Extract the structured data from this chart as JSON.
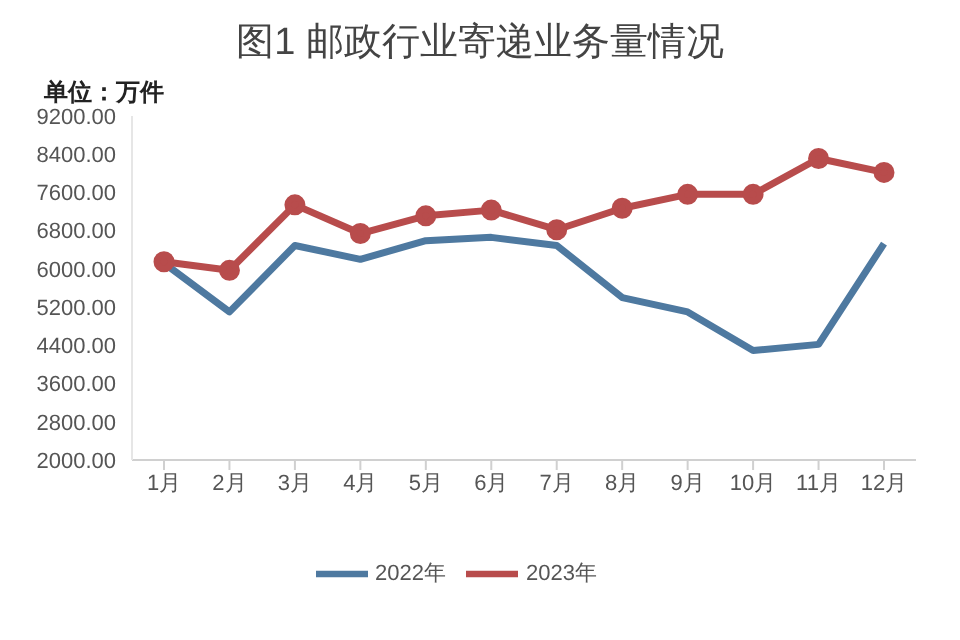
{
  "chart_data": {
    "type": "line",
    "title": "图1 邮政行业寄递业务量情况",
    "ylabel": "单位：万件",
    "categories": [
      "1月",
      "2月",
      "3月",
      "4月",
      "5月",
      "6月",
      "7月",
      "8月",
      "9月",
      "10月",
      "11月",
      "12月"
    ],
    "series": [
      {
        "name": "2022年",
        "color": "#4e79a0",
        "marker": "none",
        "values": [
          6120,
          5100,
          6490,
          6200,
          6590,
          6660,
          6490,
          5400,
          5100,
          4290,
          4420,
          6530
        ]
      },
      {
        "name": "2023年",
        "color": "#b84c4c",
        "marker": "circle",
        "values": [
          6150,
          5970,
          7340,
          6740,
          7110,
          7230,
          6820,
          7270,
          7560,
          7560,
          8310,
          8020
        ]
      }
    ],
    "ylim": [
      2000,
      9200
    ],
    "yticks": [
      {
        "value": 2000,
        "label": "2000.00"
      },
      {
        "value": 2800,
        "label": "2800.00"
      },
      {
        "value": 3600,
        "label": "3600.00"
      },
      {
        "value": 4400,
        "label": "4400.00"
      },
      {
        "value": 5200,
        "label": "5200.00"
      },
      {
        "value": 6000,
        "label": "6000.00"
      },
      {
        "value": 6800,
        "label": "6800.00"
      },
      {
        "value": 7600,
        "label": "7600.00"
      },
      {
        "value": 8400,
        "label": "8400.00"
      },
      {
        "value": 9200,
        "label": "9200.00"
      }
    ],
    "grid": false,
    "legend": "bottom"
  }
}
